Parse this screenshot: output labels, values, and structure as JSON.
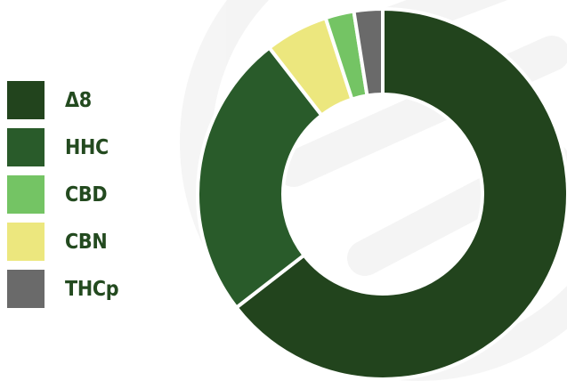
{
  "chart_data": {
    "type": "pie",
    "style": "donut",
    "legend_position": "left",
    "categories": [
      "Δ8",
      "HHC",
      "CBD",
      "CBN",
      "THCp"
    ],
    "values": [
      64.5,
      25.0,
      2.5,
      5.5,
      2.5
    ],
    "colors": [
      "#22441d",
      "#295b2a",
      "#74c464",
      "#ece77e",
      "#6a6a6a"
    ],
    "draw_order": [
      0,
      1,
      3,
      2,
      4
    ],
    "start_angle_deg": 0
  }
}
